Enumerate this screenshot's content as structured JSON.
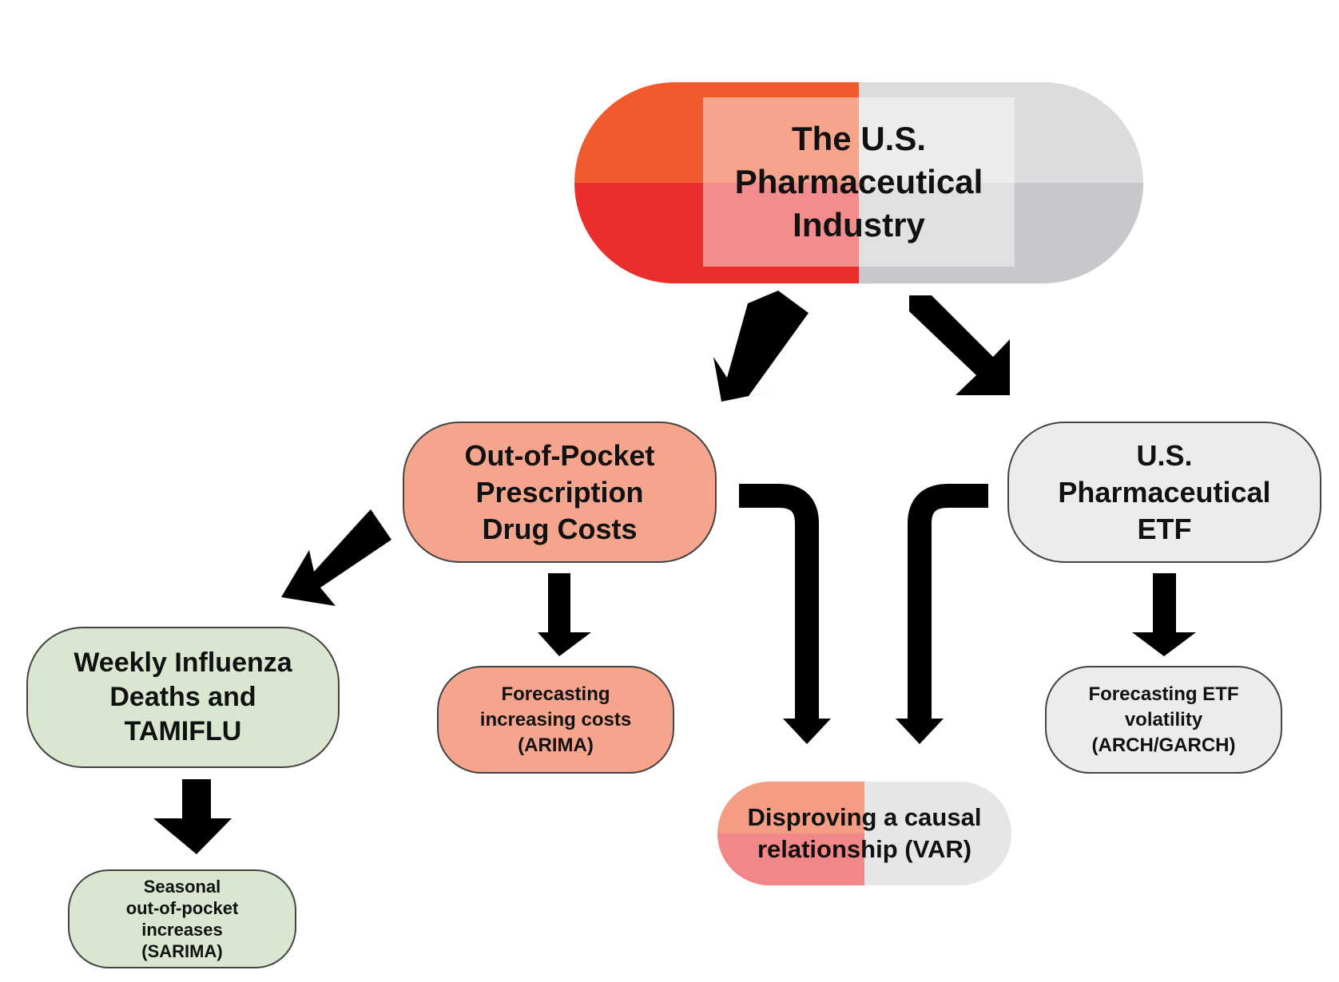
{
  "colors": {
    "pill_orange": "#f05a2e",
    "pill_red": "#ea2e2e",
    "pill_light_gray": "#dcdcde",
    "pill_gray": "#c8c7cb",
    "salmon": "#f5a58d",
    "light_gray": "#ececec",
    "light_green": "#d9e7d0",
    "var_salmon": "#f59c84",
    "var_pink": "#f28787",
    "var_gray": "#e6e6e8",
    "arrow": "#000000",
    "outline": "#444444"
  },
  "nodes": {
    "industry": {
      "lines": [
        "The U.S.",
        "Pharmaceutical",
        "Industry"
      ]
    },
    "oop": {
      "lines": [
        "Out-of-Pocket",
        "Prescription",
        "Drug Costs"
      ]
    },
    "etf": {
      "lines": [
        "U.S.",
        "Pharmaceutical",
        "ETF"
      ]
    },
    "influenza": {
      "lines": [
        "Weekly Influenza",
        "Deaths and",
        "TAMIFLU"
      ]
    },
    "arima": {
      "lines": [
        "Forecasting",
        "increasing costs",
        "(ARIMA)"
      ]
    },
    "garch": {
      "lines": [
        "Forecasting ETF",
        "volatility",
        "(ARCH/GARCH)"
      ]
    },
    "var": {
      "lines": [
        "Disproving a causal",
        "relationship (VAR)"
      ]
    },
    "sarima": {
      "lines": [
        "Seasonal",
        "out-of-pocket",
        "increases",
        "(SARIMA)"
      ]
    }
  }
}
